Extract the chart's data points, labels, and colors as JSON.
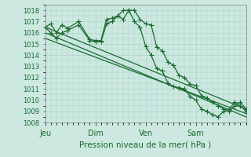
{
  "title": "Pression niveau de la mer( hPa )",
  "background_color": "#cce8e0",
  "grid_color": "#aad4cc",
  "line_color": "#1a6b30",
  "xlim": [
    0,
    108
  ],
  "ylim": [
    1008,
    1018.5
  ],
  "yticks": [
    1008,
    1009,
    1010,
    1011,
    1012,
    1013,
    1014,
    1015,
    1016,
    1017,
    1018
  ],
  "xtick_positions": [
    0,
    27,
    54,
    81
  ],
  "xtick_labels": [
    "Jeu",
    "Dim",
    "Ven",
    "Sam"
  ],
  "series1_x": [
    0,
    3,
    6,
    9,
    12,
    18,
    24,
    27,
    30,
    33,
    36,
    39,
    42,
    45,
    48,
    51,
    54,
    57,
    60,
    63,
    66,
    69,
    72,
    75,
    78,
    81,
    84,
    87,
    90,
    93,
    96,
    99,
    102,
    105,
    108
  ],
  "series1_y": [
    1016.5,
    1016.8,
    1016.0,
    1016.7,
    1016.4,
    1017.0,
    1015.4,
    1015.3,
    1015.3,
    1017.2,
    1017.3,
    1017.5,
    1017.2,
    1018.0,
    1018.0,
    1017.2,
    1016.8,
    1016.7,
    1014.7,
    1014.4,
    1013.4,
    1013.1,
    1012.2,
    1012.0,
    1011.4,
    1011.3,
    1010.4,
    1010.2,
    1009.8,
    1009.5,
    1009.2,
    1009.0,
    1009.5,
    1009.8,
    1009.2
  ],
  "series2_x": [
    0,
    3,
    6,
    9,
    12,
    18,
    24,
    27,
    30,
    33,
    36,
    39,
    42,
    45,
    48,
    51,
    54,
    57,
    60,
    63,
    66,
    69,
    72,
    75,
    78,
    81,
    84,
    87,
    90,
    93,
    96,
    99,
    102,
    105,
    108
  ],
  "series2_y": [
    1016.5,
    1016.0,
    1015.5,
    1016.0,
    1016.2,
    1016.7,
    1015.3,
    1015.2,
    1015.2,
    1016.8,
    1017.0,
    1017.5,
    1018.0,
    1018.0,
    1017.0,
    1016.5,
    1014.8,
    1014.0,
    1012.8,
    1012.6,
    1011.5,
    1011.2,
    1011.1,
    1011.0,
    1010.3,
    1010.0,
    1009.2,
    1009.0,
    1008.7,
    1008.5,
    1009.0,
    1009.2,
    1009.8,
    1009.5,
    1009.0
  ],
  "series3_x": [
    0,
    108
  ],
  "series3_y": [
    1016.5,
    1009.2
  ],
  "series4_x": [
    0,
    108
  ],
  "series4_y": [
    1016.0,
    1008.5
  ],
  "series5_x": [
    0,
    108
  ],
  "series5_y": [
    1015.5,
    1008.8
  ]
}
